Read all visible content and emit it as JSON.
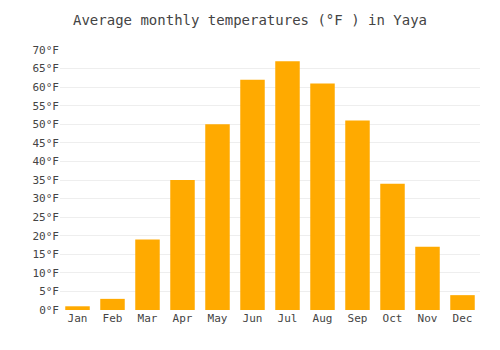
{
  "chart_data": {
    "type": "bar",
    "title": "Average monthly temperatures (°F ) in Yaya",
    "categories": [
      "Jan",
      "Feb",
      "Mar",
      "Apr",
      "May",
      "Jun",
      "Jul",
      "Aug",
      "Sep",
      "Oct",
      "Nov",
      "Dec"
    ],
    "values": [
      1,
      3,
      19,
      35,
      50,
      62,
      67,
      61,
      51,
      34,
      17,
      4
    ],
    "color": "#FFAA00",
    "ylim": [
      0,
      70
    ],
    "yticks": [
      {
        "value": 0,
        "label": "0°F"
      },
      {
        "value": 5,
        "label": "5°F"
      },
      {
        "value": 10,
        "label": "10°F"
      },
      {
        "value": 15,
        "label": "15°F"
      },
      {
        "value": 20,
        "label": "20°F"
      },
      {
        "value": 25,
        "label": "25°F"
      },
      {
        "value": 30,
        "label": "30°F"
      },
      {
        "value": 35,
        "label": "35°F"
      },
      {
        "value": 40,
        "label": "40°F"
      },
      {
        "value": 45,
        "label": "45°F"
      },
      {
        "value": 50,
        "label": "50°F"
      },
      {
        "value": 55,
        "label": "55°F"
      },
      {
        "value": 60,
        "label": "60°F"
      },
      {
        "value": 65,
        "label": "65°F"
      },
      {
        "value": 70,
        "label": "70°F"
      }
    ],
    "grid": true
  }
}
